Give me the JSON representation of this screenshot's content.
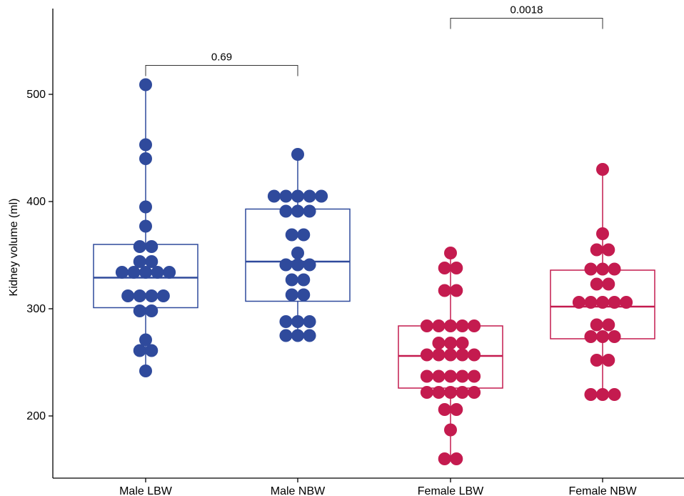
{
  "chart_data": {
    "type": "boxplot-dotplot",
    "ylabel": "Kidney volume (ml)",
    "y_ticks": [
      200,
      300,
      400,
      500
    ],
    "ylim": [
      142,
      580
    ],
    "categories": [
      "Male LBW",
      "Male NBW",
      "Female LBW",
      "Female NBW"
    ],
    "colors": [
      "#2f4a9c",
      "#2f4a9c",
      "#c41b4f",
      "#c41b4f"
    ],
    "groups": [
      {
        "name": "Male LBW",
        "box": {
          "min": 242,
          "q1": 301,
          "median": 329,
          "q3": 360,
          "max": 509
        },
        "points": [
          509,
          453,
          440,
          395,
          377,
          358,
          358,
          344,
          344,
          334,
          334,
          334,
          334,
          334,
          312,
          312,
          312,
          312,
          298,
          298,
          271,
          261,
          261,
          242
        ]
      },
      {
        "name": "Male NBW",
        "box": {
          "min": 275,
          "q1": 307,
          "median": 344,
          "q3": 393,
          "max": 444
        },
        "points": [
          444,
          405,
          405,
          405,
          405,
          405,
          391,
          391,
          391,
          369,
          369,
          352,
          341,
          341,
          341,
          327,
          327,
          313,
          313,
          288,
          288,
          288,
          275,
          275,
          275
        ]
      },
      {
        "name": "Female LBW",
        "box": {
          "min": 160,
          "q1": 226,
          "median": 256,
          "q3": 284,
          "max": 352
        },
        "points": [
          352,
          338,
          338,
          317,
          317,
          284,
          284,
          284,
          284,
          284,
          268,
          268,
          268,
          257,
          257,
          257,
          257,
          257,
          237,
          237,
          237,
          237,
          237,
          222,
          222,
          222,
          222,
          222,
          206,
          206,
          187,
          160,
          160
        ]
      },
      {
        "name": "Female NBW",
        "box": {
          "min": 220,
          "q1": 272,
          "median": 302,
          "q3": 336,
          "max": 430
        },
        "points": [
          430,
          370,
          355,
          355,
          337,
          337,
          337,
          323,
          323,
          306,
          306,
          306,
          306,
          306,
          285,
          285,
          274,
          274,
          274,
          252,
          252,
          220,
          220,
          220
        ]
      }
    ],
    "comparisons": [
      {
        "groups": [
          "Male LBW",
          "Male NBW"
        ],
        "p_value": "0.69",
        "y": 527
      },
      {
        "groups": [
          "Female LBW",
          "Female NBW"
        ],
        "p_value": "0.0018",
        "y": 571
      }
    ]
  }
}
